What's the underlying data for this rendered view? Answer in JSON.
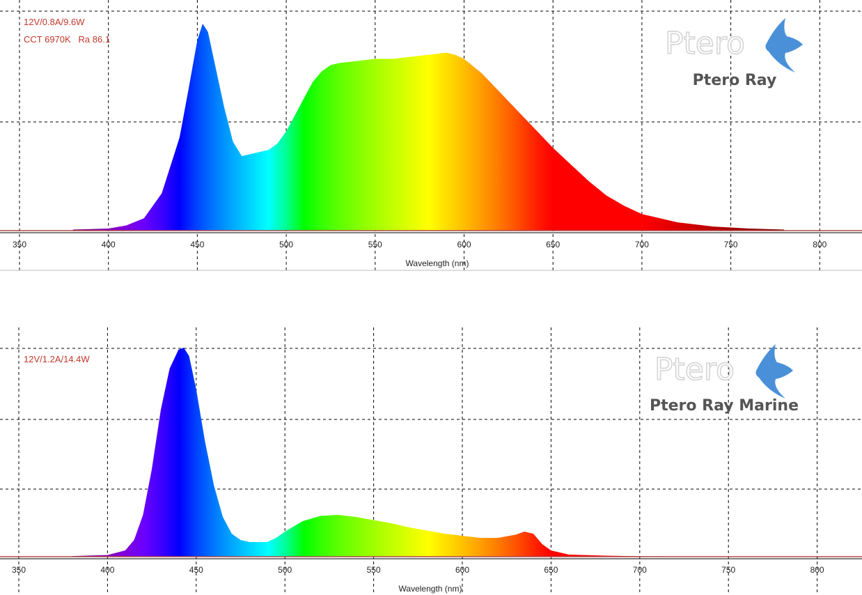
{
  "chart_data": [
    {
      "type": "area",
      "xlabel": "Wavelength (nm)",
      "xlim": [
        345,
        818
      ],
      "xticks": [
        350,
        400,
        450,
        500,
        550,
        600,
        650,
        700,
        750,
        800
      ],
      "grid": true,
      "annotations": [
        "12V/0.8A/9.6W",
        "CCT 6970K   Ra 86.1"
      ],
      "brand_label": "Ptero Ray",
      "logo_text": "Ptero",
      "spectrum": {
        "x": [
          380,
          400,
          410,
          420,
          430,
          440,
          445,
          450,
          453,
          456,
          460,
          465,
          470,
          475,
          480,
          485,
          490,
          495,
          500,
          505,
          510,
          515,
          520,
          525,
          530,
          540,
          550,
          560,
          570,
          580,
          590,
          595,
          600,
          610,
          620,
          630,
          640,
          650,
          660,
          670,
          680,
          690,
          700,
          720,
          740,
          760,
          780
        ],
        "y": [
          0.5,
          1,
          2.5,
          6,
          18,
          45,
          68,
          92,
          100,
          96,
          80,
          60,
          43,
          36,
          37,
          38,
          39,
          42,
          48,
          56,
          64,
          72,
          77,
          80,
          81,
          82,
          83,
          83,
          84,
          85,
          86,
          85,
          83,
          76,
          67,
          58,
          49,
          40,
          32,
          24,
          17,
          12,
          8,
          4,
          2,
          1,
          0.5
        ]
      }
    },
    {
      "type": "area",
      "xlabel": "Wavelength (nm)",
      "xlim": [
        345,
        818
      ],
      "xticks": [
        350,
        400,
        450,
        500,
        550,
        600,
        650,
        700,
        750,
        800
      ],
      "grid": true,
      "annotations": [
        "12V/1.2A/14.4W"
      ],
      "brand_label": "Ptero Ray Marine",
      "logo_text": "Ptero",
      "spectrum": {
        "x": [
          380,
          400,
          410,
          415,
          420,
          425,
          430,
          435,
          440,
          443,
          446,
          450,
          455,
          460,
          465,
          470,
          475,
          480,
          485,
          490,
          495,
          500,
          510,
          520,
          530,
          540,
          550,
          560,
          570,
          580,
          590,
          600,
          610,
          620,
          630,
          635,
          640,
          645,
          650,
          660,
          680,
          700,
          740,
          780
        ],
        "y": [
          0.3,
          0.8,
          3,
          8,
          20,
          42,
          70,
          90,
          99,
          100,
          96,
          80,
          55,
          34,
          19,
          11,
          8,
          7,
          7,
          7,
          9,
          12,
          17,
          19.5,
          20,
          19,
          17.5,
          16,
          14,
          12.5,
          11,
          10,
          9,
          9,
          10.5,
          12,
          11,
          6,
          3,
          1,
          0.5,
          0.2,
          0.1,
          0
        ]
      }
    }
  ]
}
